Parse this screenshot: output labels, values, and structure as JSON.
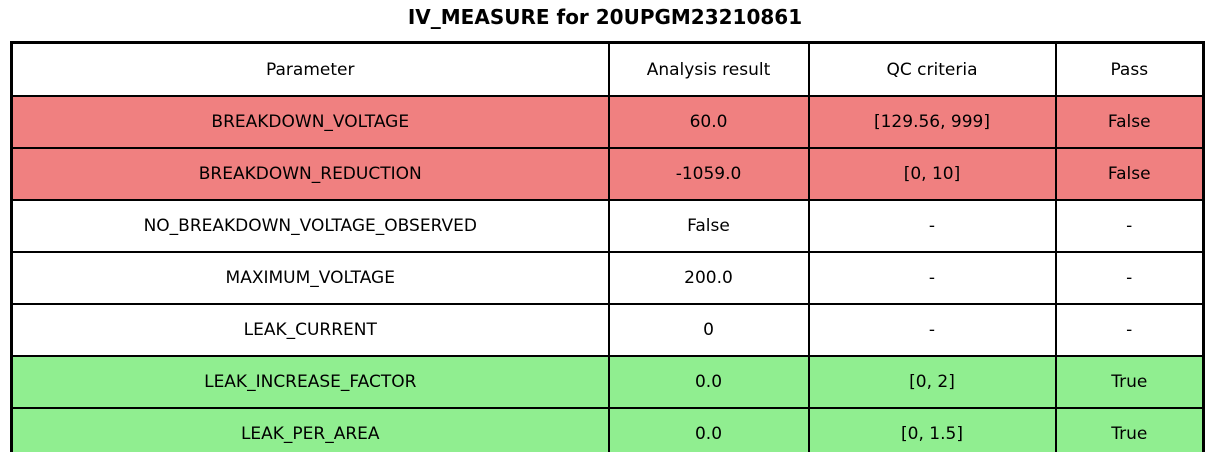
{
  "title": "IV_MEASURE for 20UPGM23210861",
  "colors": {
    "fail_row": "#f08080",
    "pass_row": "#90ee90",
    "neutral_row": "#ffffff",
    "border": "#000000",
    "text": "#000000",
    "background": "#ffffff"
  },
  "chart_data": {
    "type": "table",
    "title": "IV_MEASURE for 20UPGM23210861",
    "columns": [
      "Parameter",
      "Analysis result",
      "QC criteria",
      "Pass"
    ],
    "rows": [
      [
        "BREAKDOWN_VOLTAGE",
        "60.0",
        "[129.56, 999]",
        "False"
      ],
      [
        "BREAKDOWN_REDUCTION",
        "-1059.0",
        "[0, 10]",
        "False"
      ],
      [
        "NO_BREAKDOWN_VOLTAGE_OBSERVED",
        "False",
        "-",
        "-"
      ],
      [
        "MAXIMUM_VOLTAGE",
        "200.0",
        "-",
        "-"
      ],
      [
        "LEAK_CURRENT",
        "0",
        "-",
        "-"
      ],
      [
        "LEAK_INCREASE_FACTOR",
        "0.0",
        "[0, 2]",
        "True"
      ],
      [
        "LEAK_PER_AREA",
        "0.0",
        "[0, 1.5]",
        "True"
      ]
    ],
    "row_status": [
      "fail",
      "fail",
      "neutral",
      "neutral",
      "neutral",
      "pass",
      "pass"
    ],
    "row_colors": [
      "#f08080",
      "#f08080",
      "#ffffff",
      "#ffffff",
      "#ffffff",
      "#90ee90",
      "#90ee90"
    ],
    "layout": {
      "grid": true,
      "header_background": "#ffffff",
      "cell_text_align": "center"
    }
  }
}
